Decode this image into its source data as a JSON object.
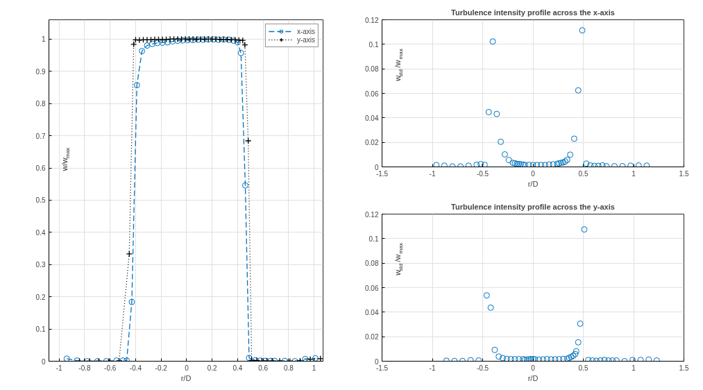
{
  "chart_data": [
    {
      "type": "line",
      "xlabel": "r/D",
      "ylabel": "w/w$_{max}$",
      "xlim": [
        -1.08,
        1.07
      ],
      "ylim": [
        0,
        1.06
      ],
      "xticks": [
        -1,
        -0.8,
        -0.6,
        -0.4,
        -0.2,
        0,
        0.2,
        0.4,
        0.6,
        0.8,
        1
      ],
      "yticks": [
        0,
        0.1,
        0.2,
        0.3,
        0.4,
        0.5,
        0.6,
        0.7,
        0.8,
        0.9,
        1
      ],
      "grid": true,
      "legend": "top right",
      "series": [
        {
          "name": "x-axis",
          "color": "#0072bd",
          "marker": "circle",
          "line_style": "dashed",
          "x": [
            -0.94,
            -0.86,
            -0.78,
            -0.7,
            -0.63,
            -0.55,
            -0.5,
            -0.47,
            -0.43,
            -0.39,
            -0.35,
            -0.31,
            -0.27,
            -0.23,
            -0.19,
            -0.15,
            -0.11,
            -0.07,
            -0.03,
            0.01,
            0.05,
            0.09,
            0.13,
            0.17,
            0.21,
            0.25,
            0.29,
            0.33,
            0.37,
            0.4,
            0.426,
            0.46,
            0.49,
            0.54,
            0.58,
            0.62,
            0.66,
            0.69,
            0.77,
            0.85,
            0.93,
            1.01
          ],
          "values": [
            0.008,
            0.002,
            0,
            0,
            0,
            0.002,
            0.002,
            0.002,
            0.184,
            0.857,
            0.963,
            0.98,
            0.985,
            0.988,
            0.989,
            0.99,
            0.993,
            0.995,
            0.996,
            0.997,
            0.997,
            0.998,
            0.998,
            0.999,
            0.999,
            0.998,
            0.999,
            0.998,
            0.995,
            0.99,
            0.957,
            0.546,
            0.01,
            0.003,
            0.002,
            0.001,
            0.001,
            0.001,
            0.001,
            0,
            0.007,
            0.009
          ]
        },
        {
          "name": "y-axis",
          "color": "#000000",
          "marker": "cross",
          "line_style": "dotted",
          "x": [
            -0.84,
            -0.76,
            -0.69,
            -0.61,
            -0.53,
            -0.45,
            -0.415,
            -0.4,
            -0.37,
            -0.34,
            -0.31,
            -0.28,
            -0.25,
            -0.22,
            -0.19,
            -0.16,
            -0.13,
            -0.1,
            -0.07,
            -0.04,
            -0.01,
            0.02,
            0.05,
            0.08,
            0.11,
            0.14,
            0.17,
            0.2,
            0.23,
            0.26,
            0.29,
            0.32,
            0.35,
            0.38,
            0.41,
            0.44,
            0.457,
            0.483,
            0.51,
            0.55,
            0.59,
            0.63,
            0.67,
            0.73,
            0.81,
            0.89,
            0.97,
            1.05
          ],
          "values": [
            0,
            0,
            0,
            0,
            0,
            0.333,
            0.984,
            0.998,
            0.997,
            0.998,
            0.998,
            0.998,
            0.999,
            0.999,
            0.999,
            0.999,
            1.0,
            1.0,
            1.0,
            1.0,
            1.0,
            1.0,
            1.0,
            1.0,
            1.0,
            1.0,
            1.0,
            1.0,
            1.0,
            0.999,
            0.999,
            0.999,
            0.998,
            0.998,
            0.997,
            0.996,
            0.982,
            0.684,
            0.003,
            0.002,
            0.001,
            0.001,
            0.001,
            0.001,
            0,
            0.001,
            0.006,
            0.008
          ]
        }
      ]
    },
    {
      "type": "scatter",
      "title": "Turbulence intensity profile across the x-axis",
      "xlabel": "r/D",
      "ylabel": "w$_{std}$/w$_{max}$",
      "xlim": [
        -1.5,
        1.5
      ],
      "ylim": [
        0,
        0.12
      ],
      "xticks": [
        -1.5,
        -1,
        -0.5,
        0,
        0.5,
        1,
        1.5
      ],
      "yticks": [
        0,
        0.02,
        0.04,
        0.06,
        0.08,
        0.1,
        0.12
      ],
      "grid": true,
      "marker": "circle",
      "series": [
        {
          "color": "#0072bd",
          "x": [
            -0.96,
            -0.88,
            -0.8,
            -0.72,
            -0.64,
            -0.56,
            -0.52,
            -0.48,
            -0.44,
            -0.4,
            -0.36,
            -0.32,
            -0.28,
            -0.24,
            -0.2,
            -0.18,
            -0.16,
            -0.14,
            -0.12,
            -0.1,
            -0.08,
            -0.04,
            0,
            0.04,
            0.08,
            0.12,
            0.16,
            0.2,
            0.24,
            0.26,
            0.28,
            0.3,
            0.32,
            0.34,
            0.37,
            0.41,
            0.45,
            0.49,
            0.53,
            0.57,
            0.61,
            0.65,
            0.69,
            0.73,
            0.81,
            0.89,
            0.97,
            1.05,
            1.13
          ],
          "values": [
            0.0015,
            0.001,
            0.0004,
            0.0004,
            0.001,
            0.0017,
            0.0023,
            0.0017,
            0.0447,
            0.1023,
            0.0432,
            0.0205,
            0.0102,
            0.0056,
            0.0033,
            0.0029,
            0.0025,
            0.0023,
            0.0021,
            0.0019,
            0.0017,
            0.0017,
            0.0015,
            0.0015,
            0.0015,
            0.0015,
            0.0019,
            0.0021,
            0.0025,
            0.0029,
            0.0033,
            0.0036,
            0.0044,
            0.0058,
            0.01,
            0.023,
            0.0624,
            0.1114,
            0.0027,
            0.0012,
            0.0008,
            0.0008,
            0.0012,
            0.0006,
            0.0006,
            0.0006,
            0.001,
            0.0012,
            0.001
          ]
        }
      ]
    },
    {
      "type": "scatter",
      "title": "Turbulence intensity profile across the y-axis",
      "xlabel": "r/D",
      "ylabel": "w$_{std}$/w$_{max}$",
      "xlim": [
        -1.5,
        1.5
      ],
      "ylim": [
        0,
        0.12
      ],
      "xticks": [
        -1.5,
        -1,
        -0.5,
        0,
        0.5,
        1,
        1.5
      ],
      "yticks": [
        0,
        0.02,
        0.04,
        0.06,
        0.08,
        0.1,
        0.12
      ],
      "grid": true,
      "marker": "circle",
      "series": [
        {
          "color": "#0072bd",
          "x": [
            -0.86,
            -0.78,
            -0.7,
            -0.62,
            -0.54,
            -0.46,
            -0.42,
            -0.38,
            -0.34,
            -0.3,
            -0.26,
            -0.22,
            -0.18,
            -0.14,
            -0.1,
            -0.08,
            -0.06,
            -0.04,
            -0.02,
            0,
            0.02,
            0.06,
            0.1,
            0.14,
            0.18,
            0.22,
            0.26,
            0.3,
            0.34,
            0.36,
            0.38,
            0.4,
            0.42,
            0.43,
            0.45,
            0.47,
            0.51,
            0.55,
            0.59,
            0.63,
            0.67,
            0.71,
            0.75,
            0.79,
            0.83,
            0.91,
            0.99,
            1.07,
            1.15,
            1.23
          ],
          "values": [
            0.0004,
            0.0002,
            0.0002,
            0.0008,
            0.0006,
            0.0537,
            0.0437,
            0.0092,
            0.0038,
            0.0025,
            0.0019,
            0.0017,
            0.0017,
            0.0017,
            0.0017,
            0.0013,
            0.0013,
            0.0015,
            0.0017,
            0.0017,
            0.0015,
            0.0013,
            0.0015,
            0.0017,
            0.0015,
            0.0015,
            0.0017,
            0.0019,
            0.0021,
            0.0027,
            0.0035,
            0.0044,
            0.0058,
            0.0081,
            0.0154,
            0.0306,
            0.1075,
            0.001,
            0.0006,
            0.0004,
            0.0006,
            0.001,
            0.0006,
            0.0006,
            0.0006,
            0,
            0.001,
            0.001,
            0.0013,
            0.0006
          ]
        }
      ]
    }
  ]
}
